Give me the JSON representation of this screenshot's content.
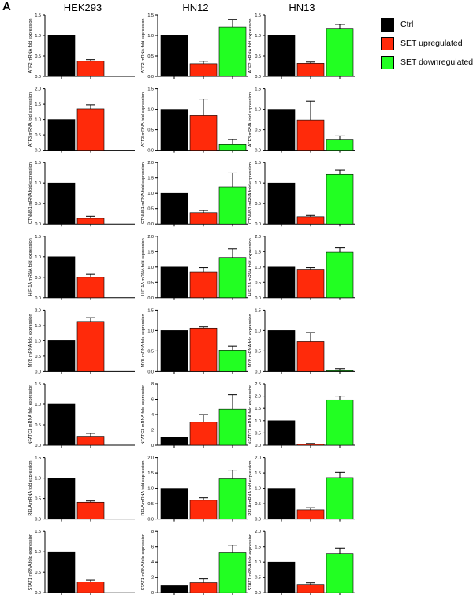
{
  "panel_label": "A",
  "columns": [
    "HEK293",
    "HN12",
    "HN13"
  ],
  "legend": [
    {
      "label": "Ctrl",
      "color": "#000000"
    },
    {
      "label": "SET upregulated",
      "color": "#ff2a0a"
    },
    {
      "label": "SET downregulated",
      "color": "#22ff22"
    }
  ],
  "chart_data": [
    {
      "type": "bar",
      "column": "HEK293",
      "ylabel": "ATF2 mRNA fold expression",
      "ylim": [
        0,
        1.5
      ],
      "yticks": [
        "0.0",
        "0.5",
        "1.0",
        "1.5"
      ],
      "values": [
        1.0,
        0.37
      ],
      "errors": [
        0,
        0.04
      ]
    },
    {
      "type": "bar",
      "column": "HN12",
      "ylabel": "ATF2 mRNA fold expression",
      "ylim": [
        0,
        1.5
      ],
      "yticks": [
        "0.0",
        "0.5",
        "1.0",
        "1.5"
      ],
      "values": [
        1.0,
        0.31,
        1.21
      ],
      "errors": [
        0,
        0.06,
        0.18
      ]
    },
    {
      "type": "bar",
      "column": "HN13",
      "ylabel": "ATF2 mRNA fold expression",
      "ylim": [
        0,
        1.5
      ],
      "yticks": [
        "0.0",
        "0.5",
        "1.0",
        "1.5"
      ],
      "values": [
        1.0,
        0.32,
        1.16
      ],
      "errors": [
        0,
        0.03,
        0.11
      ]
    },
    {
      "type": "bar",
      "column": "HEK293",
      "ylabel": "ATF3 mRNA fold expression",
      "ylim": [
        0,
        2.0
      ],
      "yticks": [
        "0.0",
        "0.5",
        "1.0",
        "1.5",
        "2.0"
      ],
      "values": [
        1.0,
        1.35
      ],
      "errors": [
        0,
        0.13
      ]
    },
    {
      "type": "bar",
      "column": "HN12",
      "ylabel": "ATF3 mRNA fold expression",
      "ylim": [
        0,
        1.5
      ],
      "yticks": [
        "0.0",
        "0.5",
        "1.0",
        "1.5"
      ],
      "values": [
        1.0,
        0.85,
        0.14
      ],
      "errors": [
        0,
        0.4,
        0.12
      ]
    },
    {
      "type": "bar",
      "column": "HN13",
      "ylabel": "ATF3 mRNA fold expression",
      "ylim": [
        0,
        1.5
      ],
      "yticks": [
        "0.0",
        "0.5",
        "1.0",
        "1.5"
      ],
      "values": [
        1.0,
        0.74,
        0.25
      ],
      "errors": [
        0,
        0.46,
        0.1
      ]
    },
    {
      "type": "bar",
      "column": "HEK293",
      "ylabel": "CTNNB1 mRNA fold expression",
      "ylim": [
        0,
        1.5
      ],
      "yticks": [
        "0.0",
        "0.5",
        "1.0",
        "1.5"
      ],
      "values": [
        1.0,
        0.14
      ],
      "errors": [
        0,
        0.05
      ]
    },
    {
      "type": "bar",
      "column": "HN12",
      "ylabel": "CTNNB1 mRNA fold expression",
      "ylim": [
        0,
        2.0
      ],
      "yticks": [
        "0.0",
        "0.5",
        "1.0",
        "1.5",
        "2.0"
      ],
      "values": [
        1.0,
        0.37,
        1.21
      ],
      "errors": [
        0,
        0.07,
        0.45
      ]
    },
    {
      "type": "bar",
      "column": "HN13",
      "ylabel": "CTNNB1 mRNA fold expression",
      "ylim": [
        0,
        1.5
      ],
      "yticks": [
        "0.0",
        "0.5",
        "1.0",
        "1.5"
      ],
      "values": [
        1.0,
        0.18,
        1.21
      ],
      "errors": [
        0,
        0.03,
        0.1
      ]
    },
    {
      "type": "bar",
      "column": "HEK293",
      "ylabel": "HIF-1A mRNA fold expression",
      "ylim": [
        0,
        1.5
      ],
      "yticks": [
        "0.0",
        "0.5",
        "1.0",
        "1.5"
      ],
      "values": [
        1.0,
        0.5
      ],
      "errors": [
        0,
        0.07
      ]
    },
    {
      "type": "bar",
      "column": "HN12",
      "ylabel": "HIF-1A mRNA fold expression",
      "ylim": [
        0,
        2.0
      ],
      "yticks": [
        "0.0",
        "0.5",
        "1.0",
        "1.5",
        "2.0"
      ],
      "values": [
        1.0,
        0.84,
        1.31
      ],
      "errors": [
        0,
        0.14,
        0.28
      ]
    },
    {
      "type": "bar",
      "column": "HN13",
      "ylabel": "HIF-1A mRNA fold expression",
      "ylim": [
        0,
        2.0
      ],
      "yticks": [
        "0.0",
        "0.5",
        "1.0",
        "1.5",
        "2.0"
      ],
      "values": [
        1.0,
        0.93,
        1.48
      ],
      "errors": [
        0,
        0.05,
        0.14
      ]
    },
    {
      "type": "bar",
      "column": "HEK293",
      "ylabel": "MYB mRNA fold expression",
      "ylim": [
        0,
        2.0
      ],
      "yticks": [
        "0.0",
        "0.5",
        "1.0",
        "1.5",
        "2.0"
      ],
      "values": [
        1.0,
        1.63
      ],
      "errors": [
        0,
        0.12
      ]
    },
    {
      "type": "bar",
      "column": "HN12",
      "ylabel": "MYB mRNA fold expression",
      "ylim": [
        0,
        1.5
      ],
      "yticks": [
        "0.0",
        "0.5",
        "1.0",
        "1.5"
      ],
      "values": [
        1.0,
        1.06,
        0.52
      ],
      "errors": [
        0,
        0.03,
        0.1
      ]
    },
    {
      "type": "bar",
      "column": "HN13",
      "ylabel": "MYB mRNA fold expression",
      "ylim": [
        0,
        1.5
      ],
      "yticks": [
        "0.0",
        "0.5",
        "1.0",
        "1.5"
      ],
      "values": [
        1.0,
        0.73,
        0.02
      ],
      "errors": [
        0,
        0.22,
        0.05
      ]
    },
    {
      "type": "bar",
      "column": "HEK293",
      "ylabel": "NFATC3 mRNA fold expression",
      "ylim": [
        0,
        1.5
      ],
      "yticks": [
        "0.0",
        "0.5",
        "1.0",
        "1.5"
      ],
      "values": [
        1.0,
        0.22
      ],
      "errors": [
        0,
        0.07
      ]
    },
    {
      "type": "bar",
      "column": "HN12",
      "ylabel": "NFATC3 mRNA fold expression",
      "ylim": [
        0,
        8
      ],
      "yticks": [
        "0",
        "2",
        "4",
        "6",
        "8"
      ],
      "values": [
        1.0,
        3.0,
        4.7
      ],
      "errors": [
        0,
        1.0,
        1.9
      ]
    },
    {
      "type": "bar",
      "column": "HN13",
      "ylabel": "NFATC3 mRNA fold expression",
      "ylim": [
        0,
        2.5
      ],
      "yticks": [
        "0.0",
        "0.5",
        "1.0",
        "1.5",
        "2.0",
        "2.5"
      ],
      "values": [
        1.0,
        0.05,
        1.85
      ],
      "errors": [
        0,
        0.02,
        0.15
      ]
    },
    {
      "type": "bar",
      "column": "HEK293",
      "ylabel": "RELA mRNA fold expression",
      "ylim": [
        0,
        1.5
      ],
      "yticks": [
        "0.0",
        "0.5",
        "1.0",
        "1.5"
      ],
      "values": [
        1.0,
        0.41
      ],
      "errors": [
        0,
        0.03
      ]
    },
    {
      "type": "bar",
      "column": "HN12",
      "ylabel": "RELA mRNA fold expression",
      "ylim": [
        0,
        2.0
      ],
      "yticks": [
        "0.0",
        "0.5",
        "1.0",
        "1.5",
        "2.0"
      ],
      "values": [
        1.0,
        0.61,
        1.31
      ],
      "errors": [
        0,
        0.08,
        0.28
      ]
    },
    {
      "type": "bar",
      "column": "HN13",
      "ylabel": "RELA mRNA fold expression",
      "ylim": [
        0,
        2.0
      ],
      "yticks": [
        "0.0",
        "0.5",
        "1.0",
        "1.5",
        "2.0"
      ],
      "values": [
        1.0,
        0.3,
        1.35
      ],
      "errors": [
        0,
        0.07,
        0.17
      ]
    },
    {
      "type": "bar",
      "column": "HEK293",
      "ylabel": "STAT1 mRNA fold expression",
      "ylim": [
        0,
        1.5
      ],
      "yticks": [
        "0.0",
        "0.5",
        "1.0",
        "1.5"
      ],
      "values": [
        1.0,
        0.26
      ],
      "errors": [
        0,
        0.05
      ]
    },
    {
      "type": "bar",
      "column": "HN12",
      "ylabel": "STAT1 mRNA fold expression",
      "ylim": [
        0,
        8
      ],
      "yticks": [
        "0",
        "2",
        "4",
        "6",
        "8"
      ],
      "values": [
        1.0,
        1.3,
        5.2
      ],
      "errors": [
        0,
        0.5,
        1.0
      ]
    },
    {
      "type": "bar",
      "column": "HN13",
      "ylabel": "STAT1 mRNA fold expression",
      "ylim": [
        0,
        2.0
      ],
      "yticks": [
        "0.0",
        "0.5",
        "1.0",
        "1.5",
        "2.0"
      ],
      "values": [
        1.0,
        0.27,
        1.27
      ],
      "errors": [
        0,
        0.05,
        0.19
      ]
    }
  ]
}
